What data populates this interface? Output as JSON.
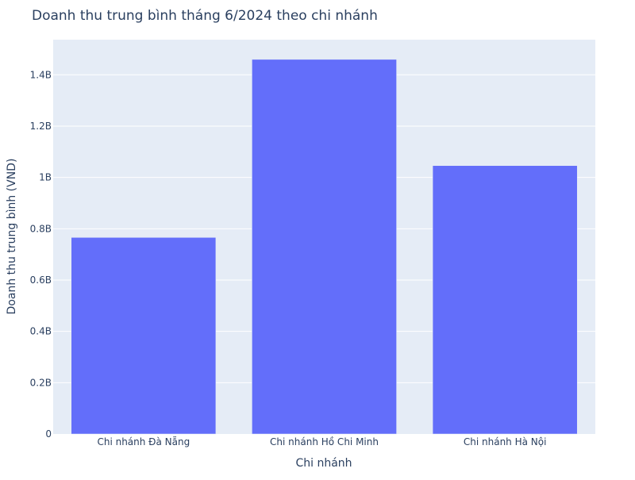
{
  "chart_data": {
    "type": "bar",
    "title": "Doanh thu trung bình tháng 6/2024 theo chi nhánh",
    "xlabel": "Chi nhánh",
    "ylabel": "Doanh thu trung bình (VND)",
    "categories": [
      "Chi nhánh Đà Nẵng",
      "Chi nhánh Hồ Chi Minh",
      "Chi nhánh Hà Nội"
    ],
    "values": [
      766000000,
      1460000000,
      1046000000
    ],
    "ylim": [
      0,
      1537000000
    ],
    "yticks": [
      0,
      200000000,
      400000000,
      600000000,
      800000000,
      1000000000,
      1200000000,
      1400000000
    ],
    "ytick_labels": [
      "0",
      "0.2B",
      "0.4B",
      "0.6B",
      "0.8B",
      "1B",
      "1.2B",
      "1.4B"
    ],
    "grid": true,
    "colors": {
      "bar": "#636efa",
      "plot_background": "#e5ecf6",
      "grid": "#ffffff",
      "text": "#2a3f5f"
    }
  }
}
